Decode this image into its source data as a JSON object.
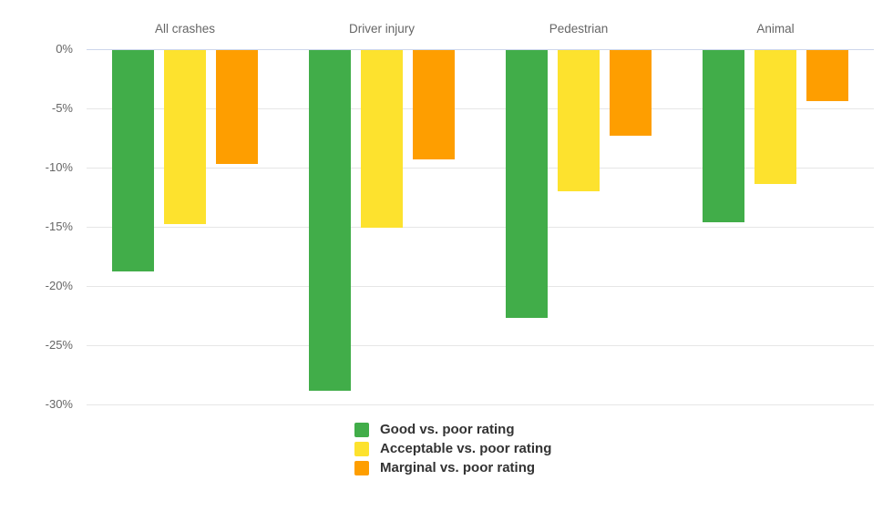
{
  "chart_data": {
    "type": "bar",
    "orientation": "vertical-negative",
    "title": "",
    "xlabel": "",
    "ylabel": "",
    "categories": [
      "All crashes",
      "Driver injury",
      "Pedestrian",
      "Animal"
    ],
    "series": [
      {
        "name": "Good vs. poor rating",
        "color": "#41ad49",
        "values": [
          -18.7,
          -28.8,
          -22.6,
          -14.5
        ]
      },
      {
        "name": "Acceptable vs. poor rating",
        "color": "#fde22e",
        "values": [
          -14.7,
          -15.0,
          -11.9,
          -11.3
        ]
      },
      {
        "name": "Marginal vs. poor rating",
        "color": "#fe9e00",
        "values": [
          -9.6,
          -9.2,
          -7.2,
          -4.3
        ]
      }
    ],
    "y_axis": {
      "min": -30,
      "max": 0,
      "tick_step": 5,
      "tick_labels": [
        "0%",
        "-5%",
        "-10%",
        "-15%",
        "-20%",
        "-25%",
        "-30%"
      ],
      "unit": "%"
    },
    "grid": true,
    "legend_position": "bottom-center",
    "theme": {
      "background": "#ffffff",
      "gridline_color": "#e6e6e6",
      "zero_axis_color": "#ccd6eb",
      "axis_label_color": "#666666",
      "legend_text_color": "#333333"
    }
  }
}
